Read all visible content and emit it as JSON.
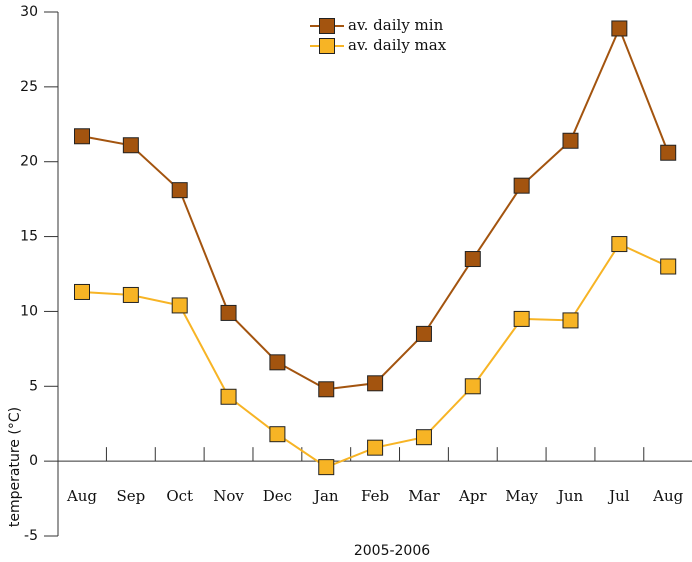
{
  "chart_data": {
    "type": "line",
    "x_label": "2005-2006",
    "y_label": "temperature (°C)",
    "categories": [
      "Aug",
      "Sep",
      "Oct",
      "Nov",
      "Dec",
      "Jan",
      "Feb",
      "Mar",
      "Apr",
      "May",
      "Jun",
      "Jul",
      "Aug"
    ],
    "series": [
      {
        "name": "av. daily min",
        "color": "#a3540f",
        "values": [
          21.7,
          21.1,
          18.1,
          9.9,
          6.6,
          4.8,
          5.2,
          8.5,
          13.5,
          18.4,
          21.4,
          28.9,
          20.6
        ]
      },
      {
        "name": "av. daily max",
        "color": "#f7b425",
        "values": [
          11.3,
          11.1,
          10.4,
          4.3,
          1.8,
          -0.4,
          0.9,
          1.6,
          5.0,
          9.5,
          9.4,
          14.5,
          13.0
        ]
      }
    ],
    "ylim": [
      -5,
      30
    ],
    "yticks": [
      -5,
      0,
      5,
      10,
      15,
      20,
      25,
      30
    ],
    "legend": "top"
  }
}
